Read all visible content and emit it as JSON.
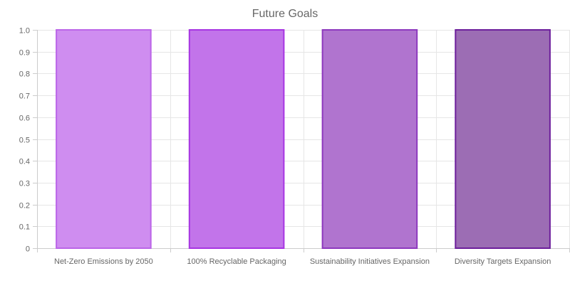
{
  "chart_data": {
    "type": "bar",
    "title": "Future Goals",
    "xlabel": "",
    "ylabel": "",
    "categories": [
      "Net-Zero Emissions by 2050",
      "100% Recyclable Packaging",
      "Sustainability Initiatives Expansion",
      "Diversity Targets Expansion"
    ],
    "values": [
      1,
      1,
      1,
      1
    ],
    "ylim": [
      0,
      1
    ],
    "yticks": [
      "0",
      "0.1",
      "0.2",
      "0.3",
      "0.4",
      "0.5",
      "0.6",
      "0.7",
      "0.8",
      "0.9",
      "1.0"
    ],
    "grid": true,
    "legend": "none",
    "bar_fill_colors": [
      "#cf8df0",
      "#c274ea",
      "#b074cf",
      "#9c6db4"
    ],
    "bar_border_colors": [
      "#bb65e8",
      "#a735e2",
      "#8d39be",
      "#6d1f9c"
    ]
  }
}
